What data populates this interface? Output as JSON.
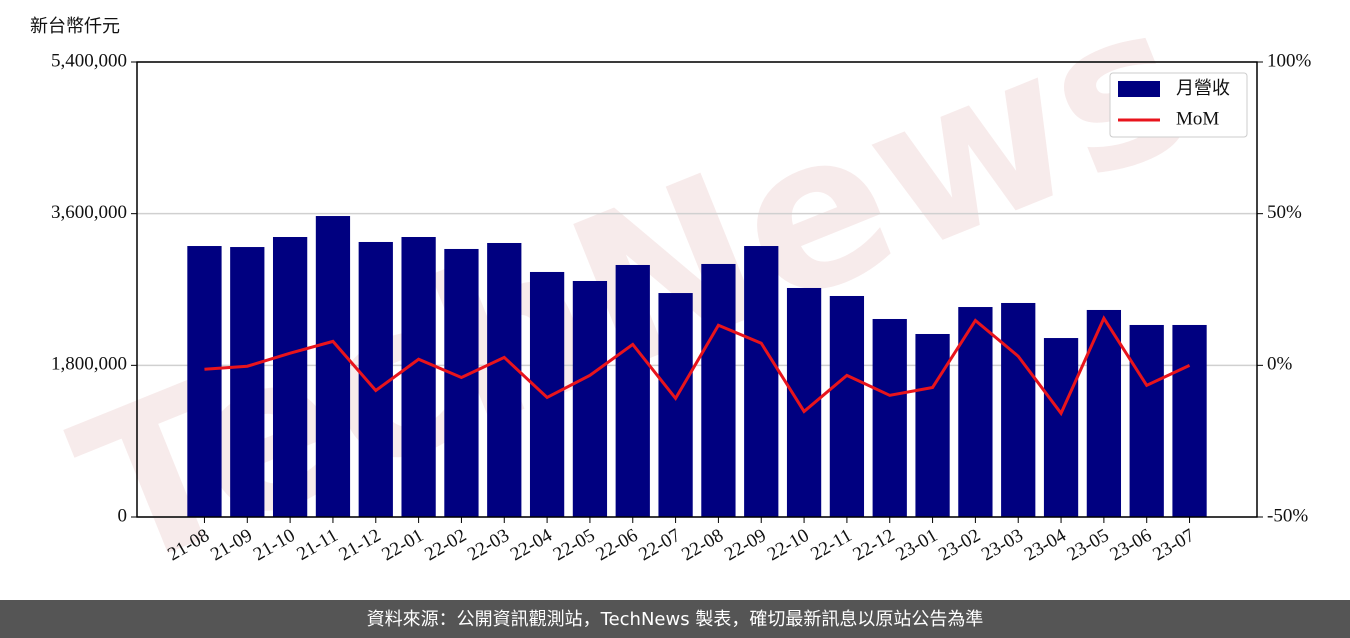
{
  "chart_data": {
    "type": "bar_line",
    "y_label": "新台幣仟元",
    "watermark": "TechNews",
    "footer": "資料來源：公開資訊觀測站，TechNews 製表，確切最新訊息以原站公告為準",
    "categories": [
      "21-08",
      "21-09",
      "21-10",
      "21-11",
      "21-12",
      "22-01",
      "22-02",
      "22-03",
      "22-04",
      "22-05",
      "22-06",
      "22-07",
      "22-08",
      "22-09",
      "22-10",
      "22-11",
      "22-12",
      "23-01",
      "23-02",
      "23-03",
      "23-04",
      "23-05",
      "23-06",
      "23-07"
    ],
    "series": [
      {
        "name": "月營收",
        "type": "bar",
        "color": "#000080",
        "values": [
          3216000,
          3204000,
          3323000,
          3572000,
          3264000,
          3323000,
          3181000,
          3252000,
          2908000,
          2801000,
          2991000,
          2658000,
          3003000,
          3216000,
          2718000,
          2623000,
          2350000,
          2172000,
          2492000,
          2540000,
          2124000,
          2457000,
          2279000,
          2279000
        ]
      },
      {
        "name": "MoM",
        "type": "line",
        "color": "#e8141c",
        "axis": "y2",
        "values": [
          -1.3,
          -0.3,
          4,
          7.9,
          -8.3,
          2,
          -4,
          2.6,
          -10.6,
          -3.3,
          6.9,
          -10.9,
          13.2,
          7.3,
          -15.2,
          -3.3,
          -9.9,
          -7.3,
          14.8,
          3,
          -15.8,
          15.5,
          -6.6,
          0
        ]
      }
    ],
    "ylim": [
      0,
      5400000
    ],
    "yticks": [
      {
        "value": 0,
        "label": "0"
      },
      {
        "value": 1800000,
        "label": "1,800,000"
      },
      {
        "value": 3600000,
        "label": "3,600,000"
      },
      {
        "value": 5400000,
        "label": "5,400,000"
      }
    ],
    "y2lim": [
      -50,
      100
    ],
    "y2ticks": [
      {
        "value": -50,
        "label": "-50%"
      },
      {
        "value": 0,
        "label": "0%"
      },
      {
        "value": 50,
        "label": "50%"
      },
      {
        "value": 100,
        "label": "100%"
      }
    ],
    "grid": true,
    "legend": "upper-right"
  }
}
